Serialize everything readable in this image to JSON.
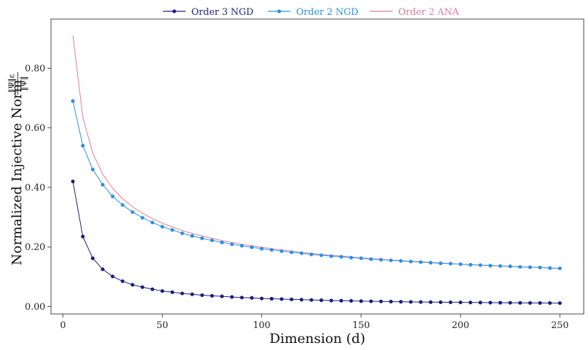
{
  "chart_data": {
    "type": "line",
    "xlabel": "Dimension (d)",
    "ylabel": "Normalized Injective Norm",
    "ylabel_fraction": {
      "numerator": "‖Ψ‖ε",
      "denominator": "‖Ψ‖"
    },
    "xlim": [
      -6,
      262
    ],
    "ylim": [
      -0.025,
      0.965
    ],
    "x_ticks": [
      0,
      50,
      100,
      150,
      200,
      250
    ],
    "x_tick_labels": [
      "0",
      "50",
      "100",
      "150",
      "200",
      "250"
    ],
    "y_ticks": [
      0.0,
      0.2,
      0.4,
      0.6,
      0.8
    ],
    "y_tick_labels": [
      "0.00",
      "0.20",
      "0.40",
      "0.60",
      "0.80"
    ],
    "legend_position": "top",
    "x": [
      5,
      10,
      15,
      20,
      25,
      30,
      35,
      40,
      45,
      50,
      55,
      60,
      65,
      70,
      75,
      80,
      85,
      90,
      95,
      100,
      105,
      110,
      115,
      120,
      125,
      130,
      135,
      140,
      145,
      150,
      155,
      160,
      165,
      170,
      175,
      180,
      185,
      190,
      195,
      200,
      205,
      210,
      215,
      220,
      225,
      230,
      235,
      240,
      245,
      250
    ],
    "series": [
      {
        "name": "Order 3 NGD",
        "color": "#1b1b7e",
        "markers": true,
        "values": [
          0.42,
          0.235,
          0.162,
          0.125,
          0.101,
          0.085,
          0.073,
          0.065,
          0.058,
          0.052,
          0.048,
          0.044,
          0.041,
          0.038,
          0.036,
          0.034,
          0.032,
          0.03,
          0.029,
          0.027,
          0.026,
          0.025,
          0.024,
          0.023,
          0.022,
          0.021,
          0.02,
          0.0195,
          0.019,
          0.018,
          0.0175,
          0.017,
          0.0165,
          0.016,
          0.0155,
          0.015,
          0.0147,
          0.0144,
          0.0141,
          0.0138,
          0.0135,
          0.0132,
          0.013,
          0.0127,
          0.0125,
          0.0122,
          0.012,
          0.0118,
          0.0116,
          0.0114
        ]
      },
      {
        "name": "Order 2 NGD",
        "color": "#2b8fe6",
        "markers": true,
        "values": [
          0.69,
          0.54,
          0.46,
          0.409,
          0.37,
          0.341,
          0.317,
          0.298,
          0.282,
          0.268,
          0.257,
          0.246,
          0.237,
          0.229,
          0.222,
          0.215,
          0.209,
          0.204,
          0.199,
          0.194,
          0.19,
          0.186,
          0.182,
          0.179,
          0.175,
          0.172,
          0.169,
          0.167,
          0.164,
          0.162,
          0.159,
          0.157,
          0.155,
          0.153,
          0.151,
          0.149,
          0.147,
          0.145,
          0.144,
          0.142,
          0.14,
          0.139,
          0.137,
          0.136,
          0.135,
          0.133,
          0.132,
          0.131,
          0.129,
          0.128
        ]
      },
      {
        "name": "Order 2 ANA",
        "color": "#e07a9a",
        "markers": false,
        "values": [
          0.91,
          0.635,
          0.515,
          0.444,
          0.397,
          0.362,
          0.335,
          0.313,
          0.295,
          0.28,
          0.267,
          0.255,
          0.245,
          0.237,
          0.229,
          0.221,
          0.215,
          0.209,
          0.204,
          0.199,
          0.194,
          0.19,
          0.186,
          0.182,
          0.178,
          0.175,
          0.172,
          0.169,
          0.166,
          0.163,
          0.161,
          0.158,
          0.156,
          0.154,
          0.152,
          0.15,
          0.148,
          0.146,
          0.144,
          0.142,
          0.141,
          0.139,
          0.138,
          0.136,
          0.135,
          0.133,
          0.132,
          0.131,
          0.129,
          0.128
        ]
      }
    ]
  }
}
